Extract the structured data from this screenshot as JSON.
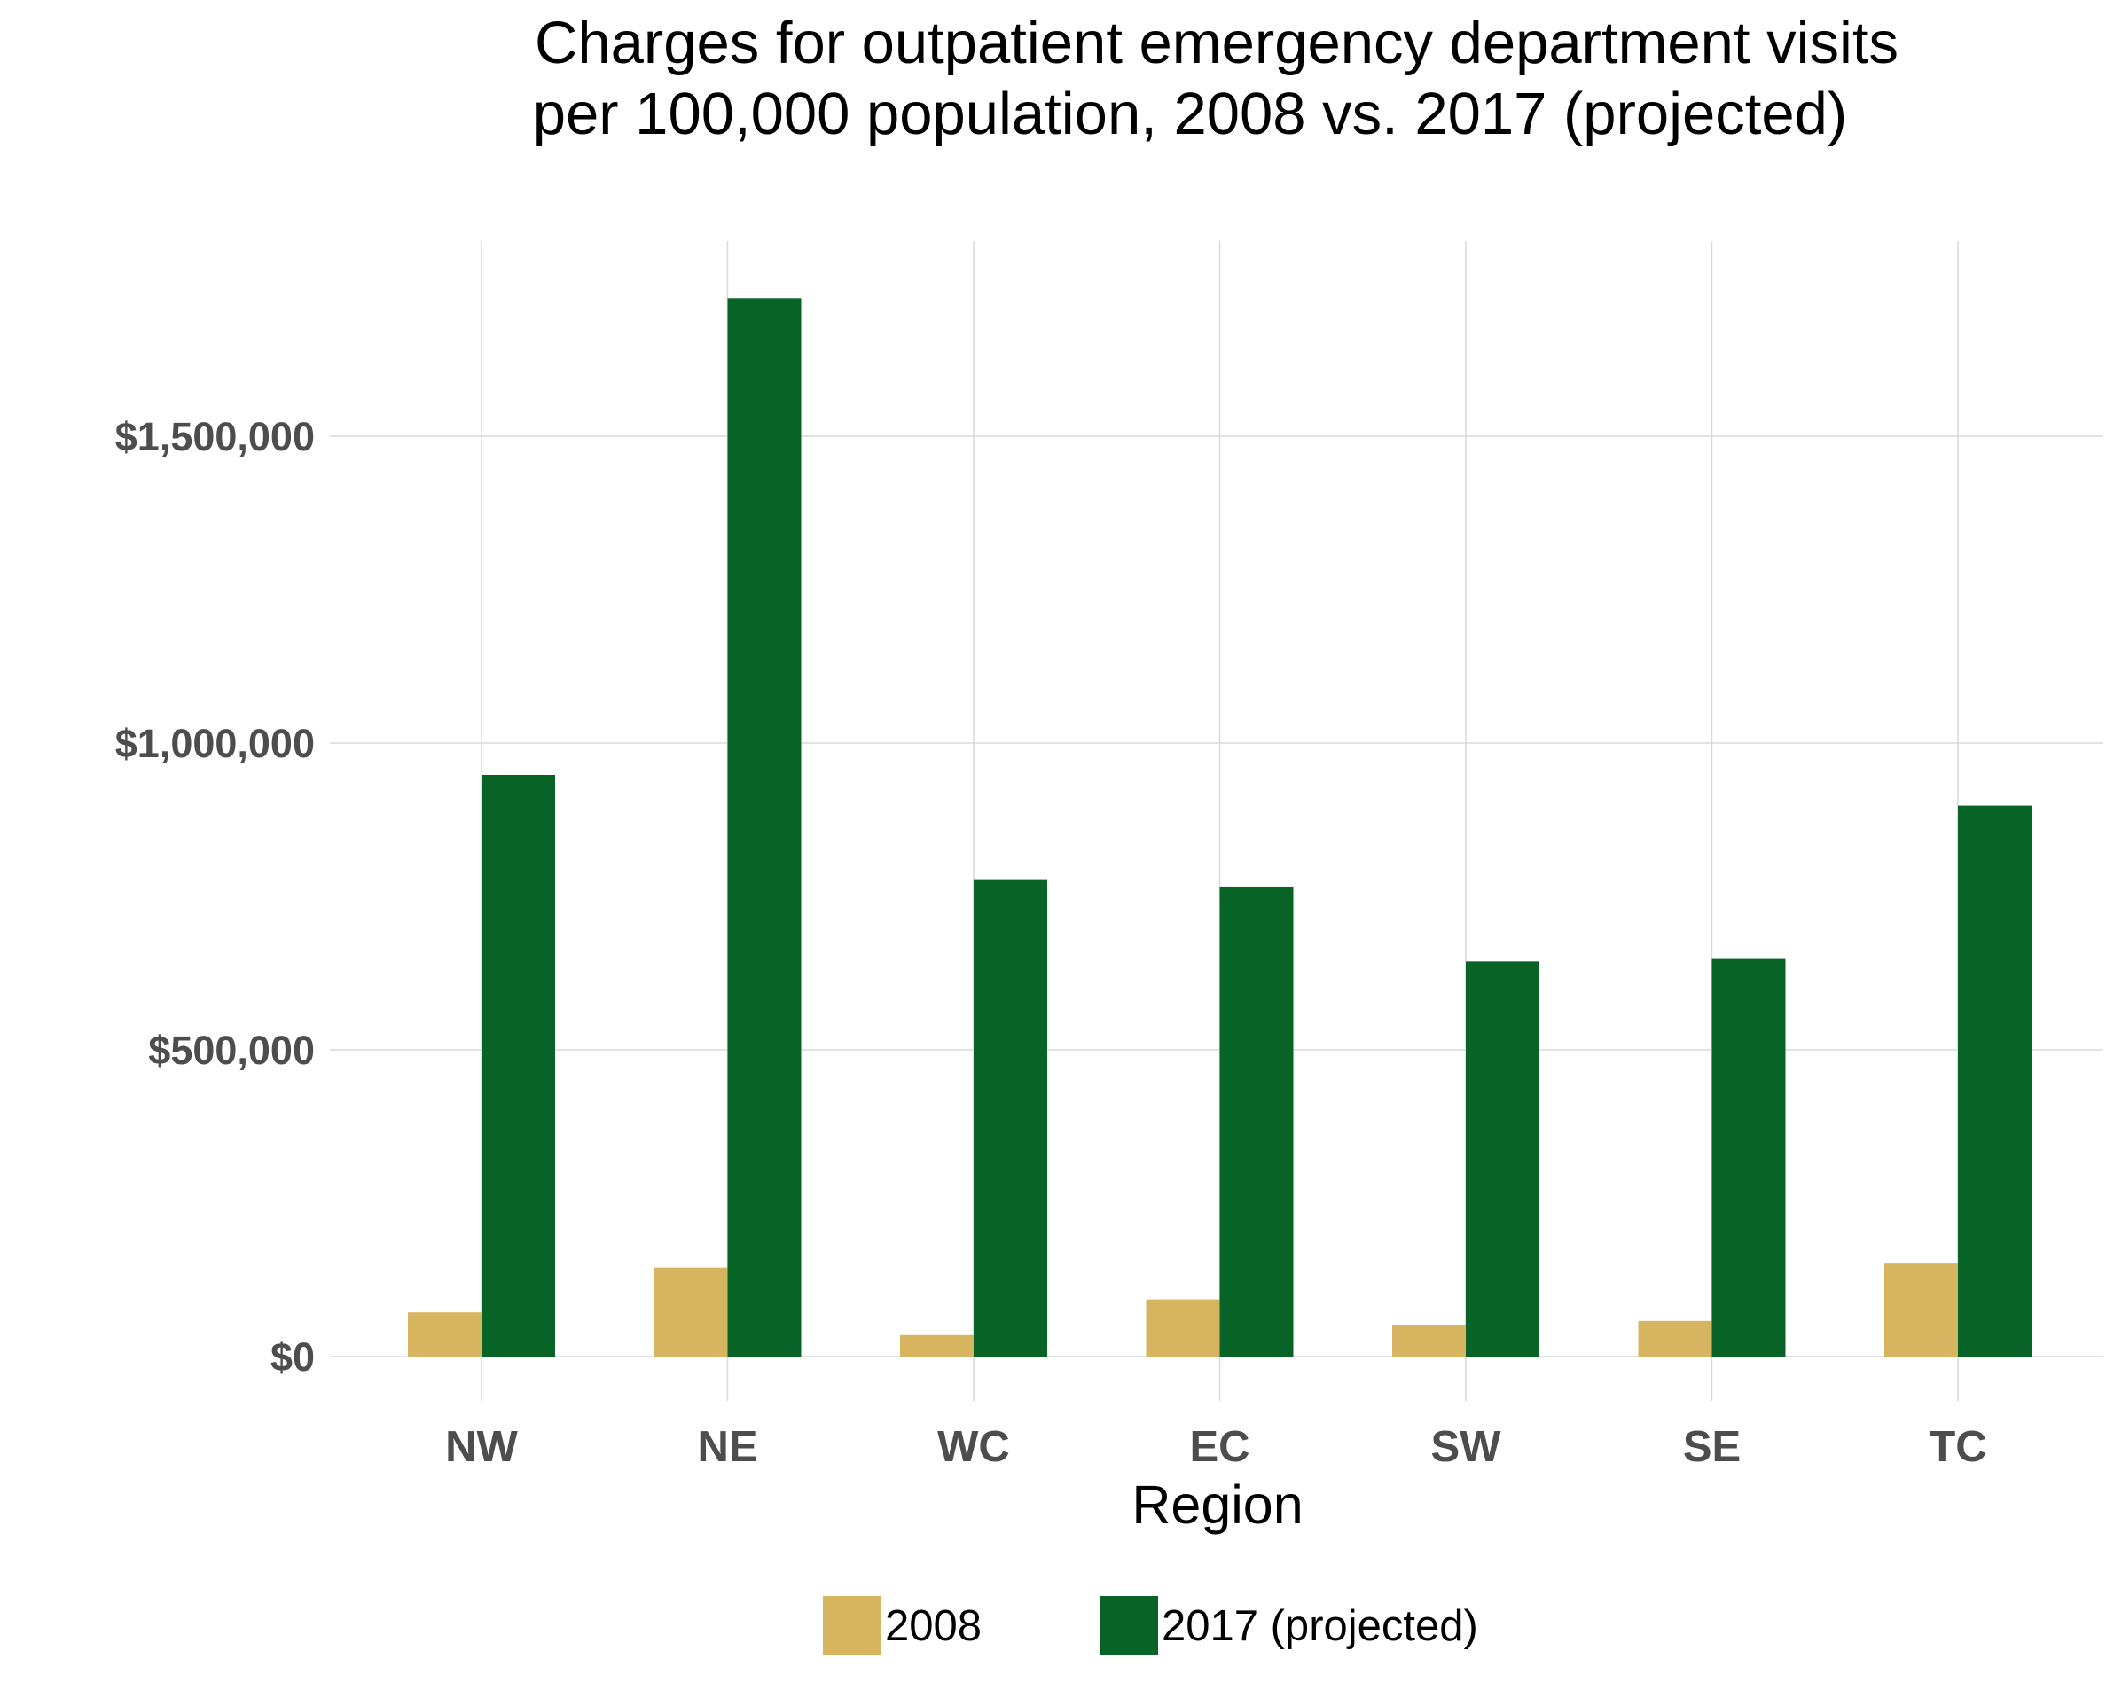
{
  "chart_data": {
    "type": "bar",
    "title_lines": [
      "Charges for outpatient emergency department visits",
      "per 100,000 population, 2008 vs. 2017 (projected)"
    ],
    "xlabel": "Region",
    "ylabel": "",
    "categories": [
      "NW",
      "NE",
      "WC",
      "EC",
      "SW",
      "SE",
      "TC"
    ],
    "series": [
      {
        "name": "2008",
        "color": "#D6B460",
        "values": [
          72000,
          145000,
          35000,
          93000,
          52000,
          58000,
          153000
        ]
      },
      {
        "name": "2017 (projected)",
        "color": "#086327",
        "values": [
          948000,
          1725000,
          778000,
          766000,
          644000,
          648000,
          898000
        ]
      }
    ],
    "yticks": [
      {
        "value": 0,
        "label": "$0"
      },
      {
        "value": 500000,
        "label": "$500,000"
      },
      {
        "value": 1000000,
        "label": "$1,000,000"
      },
      {
        "value": 1500000,
        "label": "$1,500,000"
      }
    ],
    "ylim": [
      -80000,
      1810000
    ],
    "grid": true,
    "legend_position": "bottom"
  }
}
